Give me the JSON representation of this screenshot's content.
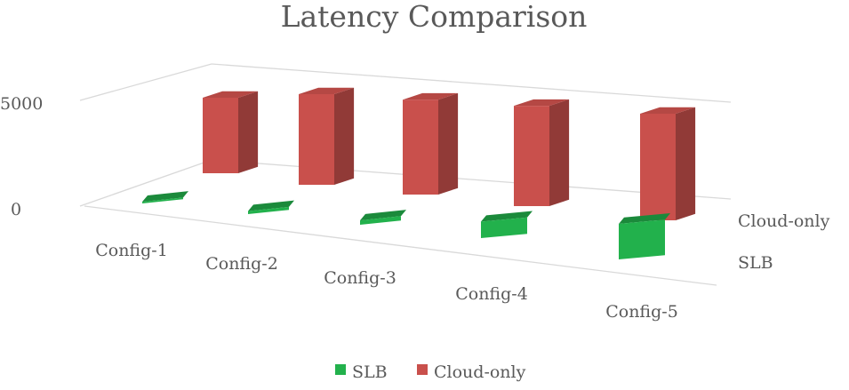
{
  "chart_data": {
    "type": "bar",
    "subtype": "3d-column",
    "title": "Latency Comparison",
    "xlabel": "",
    "ylabel": "",
    "categories": [
      "Config-1",
      "Config-2",
      "Config-3",
      "Config-4",
      "Config-5"
    ],
    "series": [
      {
        "name": "SLB",
        "color": "#22b14c",
        "values": [
          60,
          110,
          160,
          600,
          1300
        ]
      },
      {
        "name": "Cloud-only",
        "color": "#c9504c",
        "values": [
          5000,
          5000,
          4990,
          4950,
          5000
        ]
      }
    ],
    "yticks": [
      "0",
      "5000"
    ],
    "ylim": [
      0,
      5000
    ],
    "grid": true,
    "legend": "bottom"
  }
}
